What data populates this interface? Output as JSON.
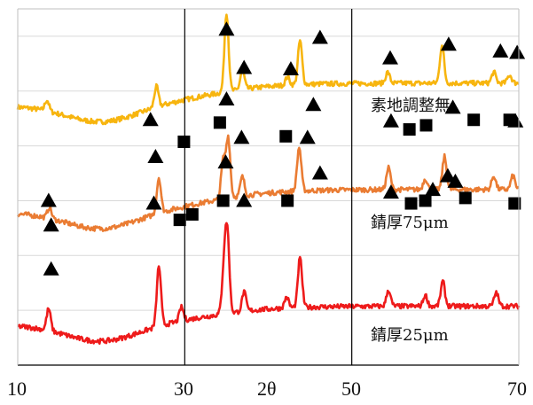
{
  "chart_data": {
    "type": "line",
    "title": "",
    "xlabel": "2θ",
    "ylabel": "",
    "xlim": [
      10,
      70
    ],
    "x_ticks": [
      "10",
      "30",
      "50",
      "70"
    ],
    "vlines": [
      30,
      50
    ],
    "grid": "horizontal gridlines",
    "marker_legend": {
      "triangle": "▲",
      "square": "■"
    },
    "colors": {
      "series_1": "#f7b50f",
      "series_2": "#ea7c33",
      "series_3": "#ee1b1b",
      "grid": "#d9d9d9",
      "axis": "#000000"
    },
    "series": [
      {
        "name": "素地調整無",
        "color": "#f7b50f",
        "baseline": 0.125,
        "peaks": [
          [
            13.5,
            0.04
          ],
          [
            26.6,
            0.075
          ],
          [
            35.0,
            0.29
          ],
          [
            36.9,
            0.07
          ],
          [
            42.3,
            0.03
          ],
          [
            43.8,
            0.16
          ],
          [
            54.3,
            0.04
          ],
          [
            60.8,
            0.14
          ],
          [
            67.0,
            0.04
          ],
          [
            68.9,
            0.03
          ]
        ],
        "slope": 0.24,
        "triangles": [
          [
            13.7,
            0.6
          ],
          [
            25.9,
            0.895
          ],
          [
            35.0,
            1.225
          ],
          [
            37.1,
            1.085
          ],
          [
            42.7,
            1.08
          ],
          [
            46.2,
            1.195
          ],
          [
            54.6,
            1.12
          ],
          [
            61.6,
            1.17
          ],
          [
            67.8,
            1.145
          ],
          [
            69.8,
            1.14
          ]
        ],
        "squares": [
          [
            29.9,
            0.815
          ]
        ]
      },
      {
        "name": "錆厚75μm",
        "color": "#ea7c33",
        "baseline": 0.135,
        "peaks": [
          [
            13.8,
            0.04
          ],
          [
            26.9,
            0.13
          ],
          [
            34.6,
            0.14
          ],
          [
            35.2,
            0.22
          ],
          [
            36.9,
            0.07
          ],
          [
            43.7,
            0.16
          ],
          [
            54.4,
            0.08
          ],
          [
            58.8,
            0.04
          ],
          [
            61.1,
            0.12
          ],
          [
            67.0,
            0.05
          ],
          [
            69.3,
            0.05
          ]
        ],
        "slope": 0.245,
        "triangles": [
          [
            14.0,
            0.51
          ],
          [
            26.5,
            0.76
          ],
          [
            35.0,
            0.97
          ],
          [
            36.8,
            0.83
          ],
          [
            44.7,
            0.83
          ],
          [
            45.4,
            0.95
          ],
          [
            54.7,
            0.89
          ],
          [
            62.1,
            0.94
          ],
          [
            69.6,
            0.89
          ]
        ],
        "squares": [
          [
            34.2,
            0.885
          ],
          [
            42.1,
            0.835
          ],
          [
            56.9,
            0.86
          ],
          [
            58.9,
            0.875
          ],
          [
            64.6,
            0.895
          ],
          [
            68.9,
            0.895
          ]
        ]
      },
      {
        "name": "錆厚25μm",
        "color": "#ee1b1b",
        "baseline": 0.145,
        "peaks": [
          [
            13.7,
            0.08
          ],
          [
            26.9,
            0.22
          ],
          [
            29.6,
            0.05
          ],
          [
            34.7,
            0.16
          ],
          [
            35.1,
            0.28
          ],
          [
            37.1,
            0.07
          ],
          [
            42.2,
            0.04
          ],
          [
            43.8,
            0.18
          ],
          [
            54.4,
            0.06
          ],
          [
            58.8,
            0.04
          ],
          [
            60.9,
            0.09
          ],
          [
            67.3,
            0.05
          ]
        ],
        "slope": 0.2,
        "triangles": [
          [
            14.0,
            0.35
          ],
          [
            26.3,
            0.59
          ],
          [
            34.9,
            0.74
          ],
          [
            37.1,
            0.6
          ],
          [
            46.2,
            0.7
          ],
          [
            54.7,
            0.63
          ],
          [
            61.5,
            0.69
          ],
          [
            62.4,
            0.67
          ],
          [
            59.7,
            0.64
          ]
        ],
        "squares": [
          [
            29.4,
            0.53
          ],
          [
            30.9,
            0.55
          ],
          [
            34.6,
            0.6
          ],
          [
            42.3,
            0.6
          ],
          [
            57.1,
            0.59
          ],
          [
            58.8,
            0.6
          ],
          [
            63.6,
            0.61
          ],
          [
            69.5,
            0.59
          ]
        ]
      }
    ]
  },
  "labels": {
    "series_1": "素地調整無",
    "series_2": "錆厚75μm",
    "series_3": "錆厚25μm",
    "xlabel": "2θ",
    "tick_10": "10",
    "tick_30": "30",
    "tick_50": "50",
    "tick_70": "70"
  }
}
